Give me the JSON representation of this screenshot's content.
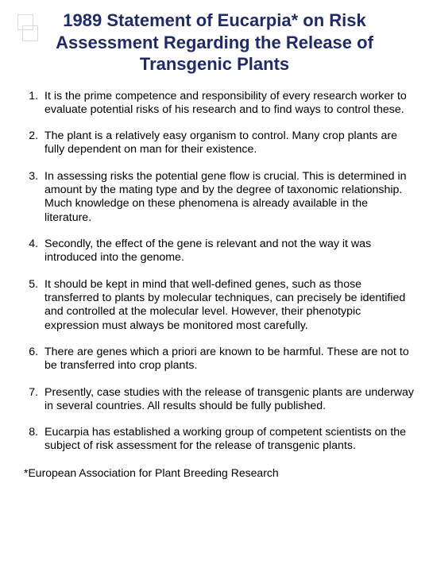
{
  "title_color": "#1f2a6b",
  "title_fontsize": 22,
  "body_fontsize": 14.2,
  "background": "#ffffff",
  "title": "1989 Statement of Eucarpia* on Risk Assessment Regarding the Release of Transgenic Plants",
  "items": [
    "It is the prime competence and responsibility of every research worker to evaluate potential risks of his research and to find ways to control these.",
    "The plant is a relatively easy organism to control. Many crop plants are fully dependent on man for their existence.",
    "In assessing risks the potential gene flow is crucial. This is determined in amount by the mating type and by the degree of taxonomic relationship. Much knowledge on these phenomena is already available in the literature.",
    "Secondly, the effect of the gene is relevant and not the way it was introduced into the genome.",
    "It should be kept in mind that well-defined genes, such as those\ntransferred to plants by molecular techniques, can precisely be identified and controlled at the molecular level. However, their phenotypic expression must always be monitored most carefully.",
    "There are genes which a priori are known to be harmful. These are not to be transferred into crop plants.",
    "Presently, case studies with the release of transgenic plants are underway in several countries. All results should be fully published.",
    "Eucarpia has established a working group of competent scientists on the subject of risk assessment for the release of transgenic plants."
  ],
  "footnote": "*European Association for Plant Breeding Research"
}
